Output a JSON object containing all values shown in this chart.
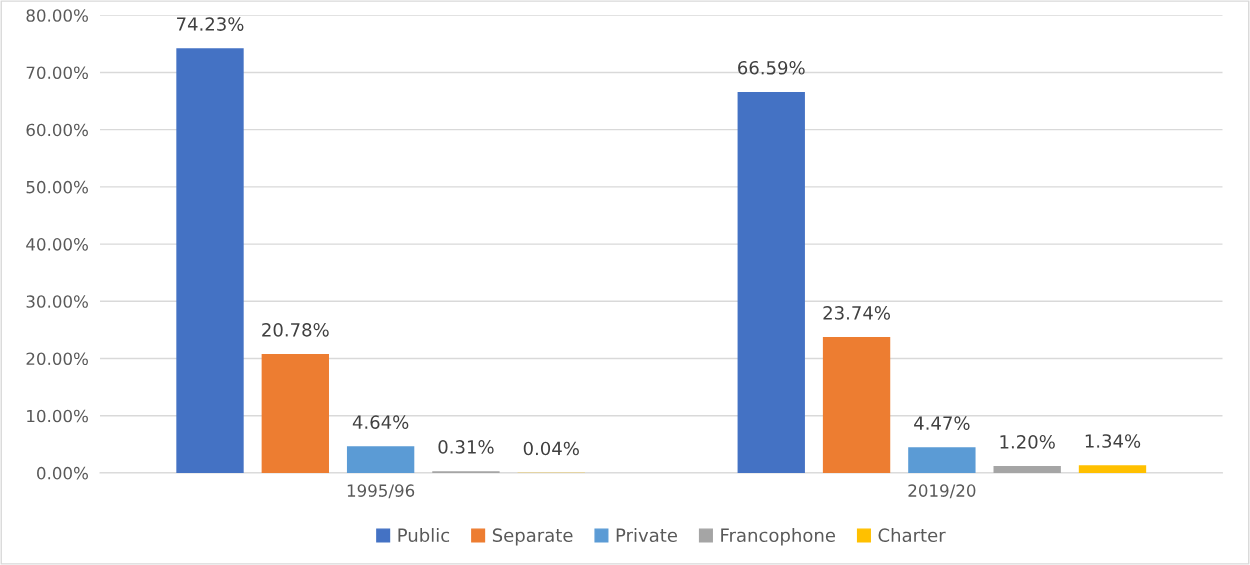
{
  "chart_data": {
    "type": "bar",
    "categories": [
      "1995/96",
      "2019/20"
    ],
    "series": [
      {
        "name": "Public",
        "color": "#4472c4",
        "values": [
          74.23,
          66.59
        ],
        "value_labels": [
          "74.23%",
          "66.59%"
        ]
      },
      {
        "name": "Separate",
        "color": "#ed7d31",
        "values": [
          20.78,
          23.74
        ],
        "value_labels": [
          "20.78%",
          "23.74%"
        ]
      },
      {
        "name": "Private",
        "color": "#5b9bd5",
        "values": [
          4.64,
          4.47
        ],
        "value_labels": [
          "4.64%",
          "4.47%"
        ]
      },
      {
        "name": "Francophone",
        "color": "#a5a5a5",
        "values": [
          0.31,
          1.2
        ],
        "value_labels": [
          "0.31%",
          "1.20%"
        ]
      },
      {
        "name": "Charter",
        "color": "#ffc000",
        "values": [
          0.04,
          1.34
        ],
        "value_labels": [
          "0.04%",
          "1.34%"
        ]
      }
    ],
    "ylim": [
      0,
      80
    ],
    "yticks": [
      {
        "value": 0,
        "label": "0.00%"
      },
      {
        "value": 10,
        "label": "10.00%"
      },
      {
        "value": 20,
        "label": "20.00%"
      },
      {
        "value": 30,
        "label": "30.00%"
      },
      {
        "value": 40,
        "label": "40.00%"
      },
      {
        "value": 50,
        "label": "50.00%"
      },
      {
        "value": 60,
        "label": "60.00%"
      },
      {
        "value": 70,
        "label": "70.00%"
      },
      {
        "value": 80,
        "label": "80.00%"
      }
    ],
    "grid": "y",
    "legend": "bottom"
  }
}
